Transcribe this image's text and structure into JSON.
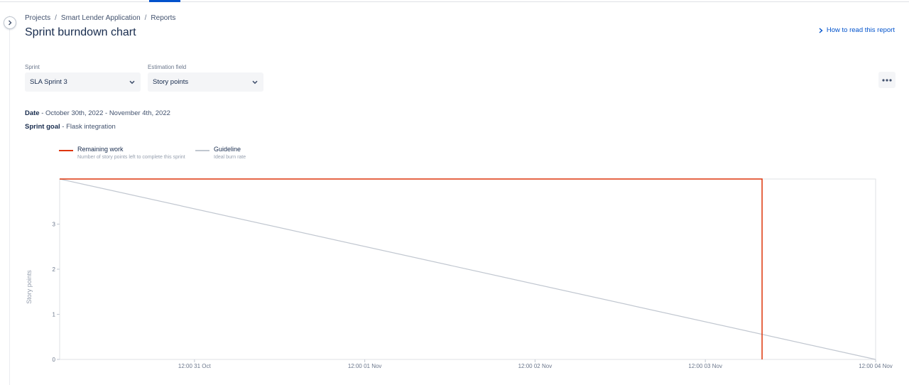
{
  "breadcrumb": {
    "projects": "Projects",
    "project": "Smart Lender Application",
    "reports": "Reports",
    "separator": "/"
  },
  "page": {
    "title": "Sprint burndown chart",
    "help_link": "How to read this report"
  },
  "filters": {
    "sprint": {
      "label": "Sprint",
      "value": "SLA Sprint 3"
    },
    "estimation": {
      "label": "Estimation field",
      "value": "Story points"
    }
  },
  "sprint_info": {
    "date_label": "Date",
    "date_value": "- October 30th, 2022 - November 4th, 2022",
    "goal_label": "Sprint goal",
    "goal_value": "- Flask integration"
  },
  "legend": {
    "remaining": {
      "name": "Remaining work",
      "desc": "Number of story points left to complete this sprint",
      "color": "#de350b"
    },
    "guideline": {
      "name": "Guideline",
      "desc": "Ideal burn rate",
      "color": "#c1c7d0"
    }
  },
  "icons": {
    "expand": "chevron-right-icon",
    "help": "chevron-right-icon",
    "dropdown": "chevron-down-icon",
    "more": "more-horizontal-icon"
  },
  "colors": {
    "accent": "#0052cc",
    "remaining_work": "#de350b",
    "guideline": "#c1c7d0"
  },
  "chart_data": {
    "type": "line",
    "ylabel": "Story points",
    "xlabel": "",
    "ylim": [
      0,
      4
    ],
    "y_ticks": [
      0,
      1,
      2,
      3
    ],
    "x_range": [
      "2022-10-30T17:00",
      "2022-11-04T12:00"
    ],
    "x_ticks": [
      {
        "label": "12:00 31 Oct",
        "value": "2022-10-31T12:00"
      },
      {
        "label": "12:00 01 Nov",
        "value": "2022-11-01T12:00"
      },
      {
        "label": "12:00 02 Nov",
        "value": "2022-11-02T12:00"
      },
      {
        "label": "12:00 03 Nov",
        "value": "2022-11-03T12:00"
      },
      {
        "label": "12:00 04 Nov",
        "value": "2022-11-04T12:00"
      }
    ],
    "series": [
      {
        "name": "Remaining work",
        "color": "#de350b",
        "step": true,
        "points": [
          {
            "x": "2022-10-30T17:00",
            "y": 4
          },
          {
            "x": "2022-11-03T20:00",
            "y": 4
          },
          {
            "x": "2022-11-03T20:00",
            "y": 0
          }
        ]
      },
      {
        "name": "Guideline",
        "color": "#c1c7d0",
        "points": [
          {
            "x": "2022-10-30T17:00",
            "y": 4
          },
          {
            "x": "2022-11-04T12:00",
            "y": 0
          }
        ]
      }
    ]
  }
}
